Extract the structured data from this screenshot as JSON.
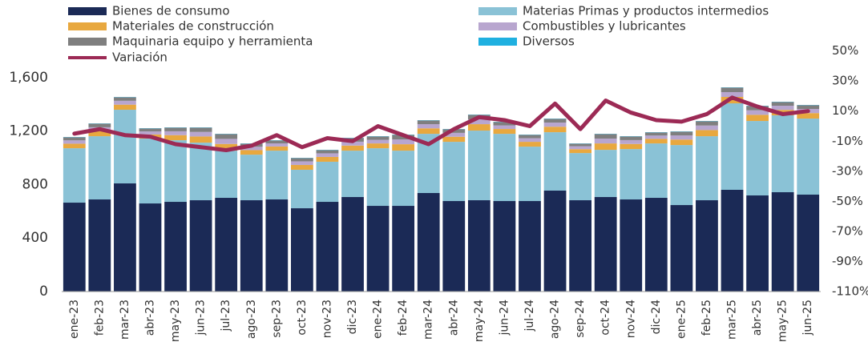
{
  "chart_data": {
    "type": "stacked_bar_line",
    "categories": [
      "ene-23",
      "feb-23",
      "mar-23",
      "abr-23",
      "may-23",
      "jun-23",
      "jul-23",
      "ago-23",
      "sep-23",
      "oct-23",
      "nov-23",
      "dic-23",
      "ene-24",
      "feb-24",
      "mar-24",
      "abr-24",
      "may-24",
      "jun-24",
      "jul-24",
      "ago-24",
      "sep-24",
      "oct-24",
      "nov-24",
      "dic-24",
      "ene-25",
      "feb-25",
      "mar-25",
      "abr-25",
      "may-25",
      "jun-25"
    ],
    "series": [
      {
        "name": "Bienes de consumo",
        "color": "#1b2a56",
        "values": [
          665,
          689,
          809,
          659,
          671,
          683,
          701,
          683,
          689,
          623,
          671,
          707,
          641,
          641,
          737,
          677,
          683,
          677,
          677,
          755,
          683,
          707,
          689,
          701,
          647,
          683,
          761,
          719,
          743,
          725
        ]
      },
      {
        "name": "Materias Primas y productos intermedios",
        "color": "#8ac2d6",
        "values": [
          407,
          473,
          551,
          485,
          461,
          431,
          353,
          341,
          365,
          288,
          300,
          347,
          431,
          413,
          443,
          443,
          521,
          503,
          407,
          437,
          353,
          353,
          377,
          407,
          449,
          479,
          647,
          557,
          575,
          569
        ]
      },
      {
        "name": "Materiales de construcción",
        "color": "#e8a83f",
        "values": [
          34,
          38,
          38,
          31,
          38,
          46,
          50,
          34,
          31,
          36,
          36,
          38,
          36,
          48,
          41,
          38,
          48,
          36,
          36,
          41,
          29,
          48,
          38,
          34,
          41,
          46,
          48,
          46,
          41,
          41
        ]
      },
      {
        "name": "Combustibles y lubricantes",
        "color": "#b8a6cf",
        "values": [
          25,
          29,
          29,
          23,
          29,
          34,
          38,
          25,
          23,
          27,
          27,
          29,
          27,
          36,
          31,
          29,
          36,
          27,
          27,
          31,
          22,
          36,
          29,
          25,
          31,
          34,
          36,
          34,
          31,
          31
        ]
      },
      {
        "name": "Maquinaria equipo y herramienta",
        "color": "#7f7f7f",
        "values": [
          23,
          27,
          26,
          22,
          27,
          32,
          36,
          23,
          22,
          24,
          24,
          27,
          25,
          34,
          28,
          27,
          34,
          25,
          25,
          28,
          19,
          34,
          27,
          23,
          28,
          32,
          34,
          32,
          28,
          28
        ]
      },
      {
        "name": "Diversos",
        "color": "#1fb0e0",
        "values": [
          2,
          2,
          2,
          2,
          2,
          2,
          2,
          2,
          2,
          2,
          2,
          2,
          2,
          2,
          2,
          2,
          2,
          2,
          2,
          2,
          2,
          2,
          2,
          2,
          2,
          2,
          2,
          2,
          2,
          2
        ]
      },
      {
        "name": "Variación",
        "color": "#9c2a55",
        "axis": "y2",
        "values": [
          -5,
          -2,
          -6,
          -7,
          -12,
          -14,
          -16,
          -13,
          -6,
          -14,
          -8,
          -10,
          0,
          -6,
          -12,
          -2,
          6,
          4,
          0,
          15,
          -2,
          17,
          9,
          4,
          3,
          8,
          19,
          13,
          8,
          10
        ]
      }
    ],
    "ylim": [
      0,
      1800
    ],
    "yticks": [
      0,
      400,
      800,
      {
        "value": 1200,
        "label": "1,200"
      },
      {
        "value": 1600,
        "label": "1,600"
      }
    ],
    "y2lim": [
      -110,
      50
    ],
    "y2ticks": [
      {
        "value": -110,
        "label": "-110%"
      },
      {
        "value": -90,
        "label": "-90%"
      },
      {
        "value": -70,
        "label": "-70%"
      },
      {
        "value": -50,
        "label": "-50%"
      },
      {
        "value": -30,
        "label": "-30%"
      },
      {
        "value": -10,
        "label": "-10%"
      },
      {
        "value": 10,
        "label": "10%"
      },
      {
        "value": 30,
        "label": "30%"
      },
      {
        "value": 50,
        "label": "50%"
      }
    ]
  }
}
